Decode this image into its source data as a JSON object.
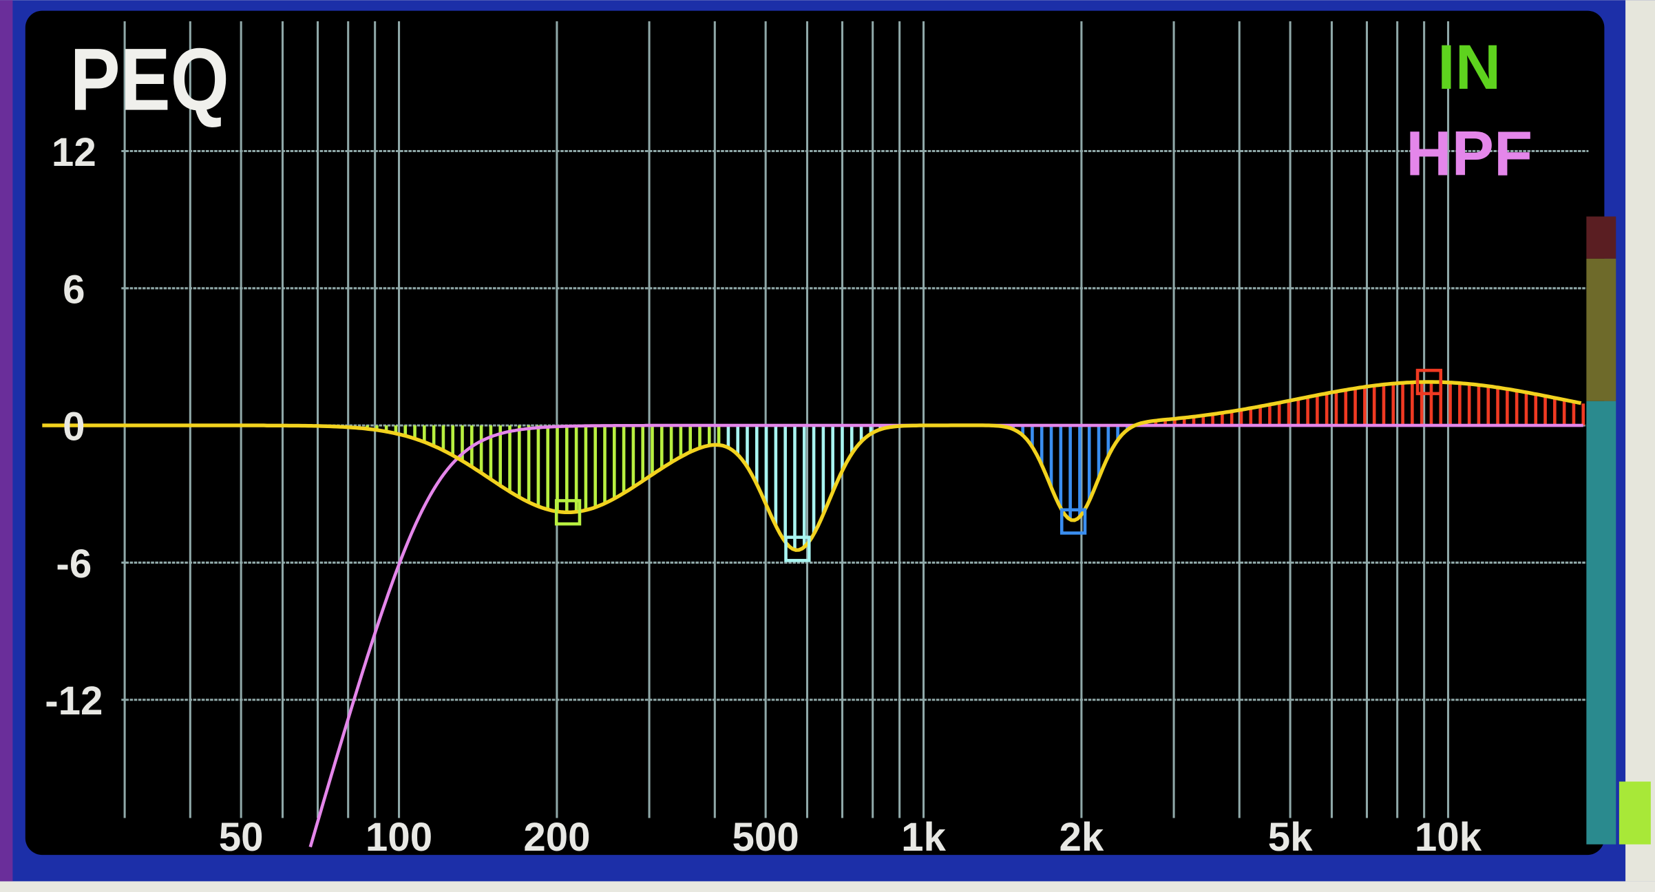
{
  "title": "PEQ",
  "status": {
    "in_label": "IN",
    "hpf_label": "HPF"
  },
  "colors": {
    "frame": "#1c2fa8",
    "screen": "#000000",
    "grid": "#8fa8a8",
    "curve": "#f2d21e",
    "hpf": "#e486ea",
    "in": "#5ed21e",
    "title": "#f0f0ec"
  },
  "chart_data": {
    "type": "line",
    "title": "PEQ",
    "x_scale": "log",
    "xlim_hz": [
      30,
      20000
    ],
    "ylim_db": [
      -15,
      15
    ],
    "grid": true,
    "y_ticks": [
      "12",
      "6",
      "0",
      "-6",
      "-12"
    ],
    "y_tick_values": [
      12,
      6,
      0,
      -6,
      -12
    ],
    "x_ticks": [
      "50",
      "100",
      "200",
      "500",
      "1k",
      "2k",
      "5k",
      "10k"
    ],
    "x_tick_values": [
      50,
      100,
      200,
      500,
      1000,
      2000,
      5000,
      10000
    ],
    "bands": [
      {
        "freq_hz": 210,
        "gain_db": -3.8,
        "q": 1.0,
        "color": "#b8f040"
      },
      {
        "freq_hz": 575,
        "gain_db": -5.4,
        "q": 2.5,
        "color": "#a8f4f0"
      },
      {
        "freq_hz": 1930,
        "gain_db": -4.2,
        "q": 3.3,
        "color": "#3a8ef0"
      },
      {
        "freq_hz": 9200,
        "gain_db": 1.9,
        "q": 0.6,
        "color": "#f03a22"
      }
    ],
    "hpf": {
      "cutoff_hz": 115,
      "slope_db_per_oct": 24
    }
  },
  "meter": {
    "level": 0.1,
    "segments": [
      "#5a1e22",
      "#6e6a2a",
      "#2a8a8e"
    ],
    "lit_color": "#a8e838"
  }
}
